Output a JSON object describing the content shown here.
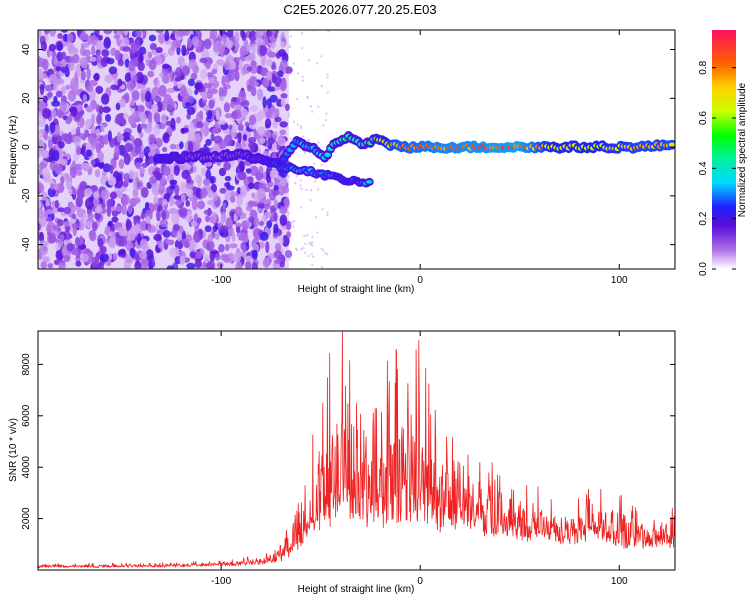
{
  "title": "C2E5.2026.077.20.25.E03",
  "chart_data": [
    {
      "type": "heatmap",
      "xlabel": "Height of straight line (km)",
      "ylabel": "Frequency (Hz)",
      "xlim": [
        -192,
        128
      ],
      "ylim": [
        -50,
        48
      ],
      "xticks": [
        -100,
        0,
        100
      ],
      "yticks": [
        -40,
        -20,
        0,
        20,
        40
      ],
      "colorbar": {
        "label": "Normalized spectral amplitude",
        "range": [
          0.0,
          0.95
        ],
        "ticks": [
          0.0,
          0.2,
          0.4,
          0.6,
          0.8
        ]
      },
      "noise_region": {
        "x_range": [
          -192,
          -66
        ],
        "freq_range": [
          -50,
          48
        ],
        "level": "low-moderate"
      },
      "signal_track": [
        {
          "x": -132,
          "f": -5,
          "a": 0.25
        },
        {
          "x": -115,
          "f": -4,
          "a": 0.15
        },
        {
          "x": -100,
          "f": -4,
          "a": 0.12
        },
        {
          "x": -90,
          "f": -3,
          "a": 0.15
        },
        {
          "x": -80,
          "f": -5,
          "a": 0.18
        },
        {
          "x": -70,
          "f": -7,
          "a": 0.3
        },
        {
          "x": -62,
          "f": 2,
          "a": 0.35
        },
        {
          "x": -55,
          "f": 0,
          "a": 0.35
        },
        {
          "x": -48,
          "f": -4,
          "a": 0.4
        },
        {
          "x": -42,
          "f": 2,
          "a": 0.45
        },
        {
          "x": -36,
          "f": 4,
          "a": 0.5
        },
        {
          "x": -28,
          "f": 1,
          "a": 0.45
        },
        {
          "x": -22,
          "f": 3,
          "a": 0.6
        },
        {
          "x": -15,
          "f": 1,
          "a": 0.8
        },
        {
          "x": -5,
          "f": 0,
          "a": 0.85
        },
        {
          "x": 10,
          "f": 0,
          "a": 0.9
        },
        {
          "x": 30,
          "f": 0,
          "a": 0.92
        },
        {
          "x": 50,
          "f": 0,
          "a": 0.95
        },
        {
          "x": 70,
          "f": 0,
          "a": 0.7
        },
        {
          "x": 90,
          "f": 0,
          "a": 0.75
        },
        {
          "x": 110,
          "f": 0,
          "a": 0.8
        },
        {
          "x": 128,
          "f": 1,
          "a": 0.8
        }
      ],
      "lower_branch": [
        {
          "x": -70,
          "f": -8,
          "a": 0.3
        },
        {
          "x": -55,
          "f": -10,
          "a": 0.35
        },
        {
          "x": -45,
          "f": -12,
          "a": 0.3
        },
        {
          "x": -35,
          "f": -14,
          "a": 0.25
        },
        {
          "x": -24,
          "f": -15,
          "a": 0.4
        }
      ]
    },
    {
      "type": "line",
      "xlabel": "Height of straight line (km)",
      "ylabel": "SNR (10 * v/v)",
      "xlim": [
        -192,
        128
      ],
      "ylim": [
        0,
        9300
      ],
      "xticks": [
        -100,
        0,
        100
      ],
      "yticks": [
        2000,
        4000,
        6000,
        8000
      ],
      "series": [
        {
          "name": "SNR",
          "color": "#ee2222",
          "envelope": [
            {
              "x": -192,
              "base": 150,
              "amp": 90
            },
            {
              "x": -140,
              "base": 160,
              "amp": 110
            },
            {
              "x": -100,
              "base": 220,
              "amp": 140
            },
            {
              "x": -80,
              "base": 320,
              "amp": 220
            },
            {
              "x": -70,
              "base": 500,
              "amp": 500
            },
            {
              "x": -60,
              "base": 1200,
              "amp": 1800
            },
            {
              "x": -50,
              "base": 2400,
              "amp": 4200
            },
            {
              "x": -40,
              "base": 3000,
              "amp": 6000
            },
            {
              "x": -30,
              "base": 2800,
              "amp": 5800
            },
            {
              "x": -20,
              "base": 2700,
              "amp": 5500
            },
            {
              "x": -10,
              "base": 2600,
              "amp": 5600
            },
            {
              "x": -2,
              "base": 3000,
              "amp": 5800
            },
            {
              "x": 10,
              "base": 2400,
              "amp": 3500
            },
            {
              "x": 20,
              "base": 2500,
              "amp": 3000
            },
            {
              "x": 30,
              "base": 2200,
              "amp": 2800
            },
            {
              "x": 40,
              "base": 1800,
              "amp": 2000
            },
            {
              "x": 60,
              "base": 1700,
              "amp": 1600
            },
            {
              "x": 75,
              "base": 1500,
              "amp": 1300
            },
            {
              "x": 90,
              "base": 1800,
              "amp": 1500
            },
            {
              "x": 100,
              "base": 1400,
              "amp": 1500
            },
            {
              "x": 110,
              "base": 1300,
              "amp": 1100
            },
            {
              "x": 128,
              "base": 1400,
              "amp": 900
            }
          ]
        }
      ]
    }
  ]
}
